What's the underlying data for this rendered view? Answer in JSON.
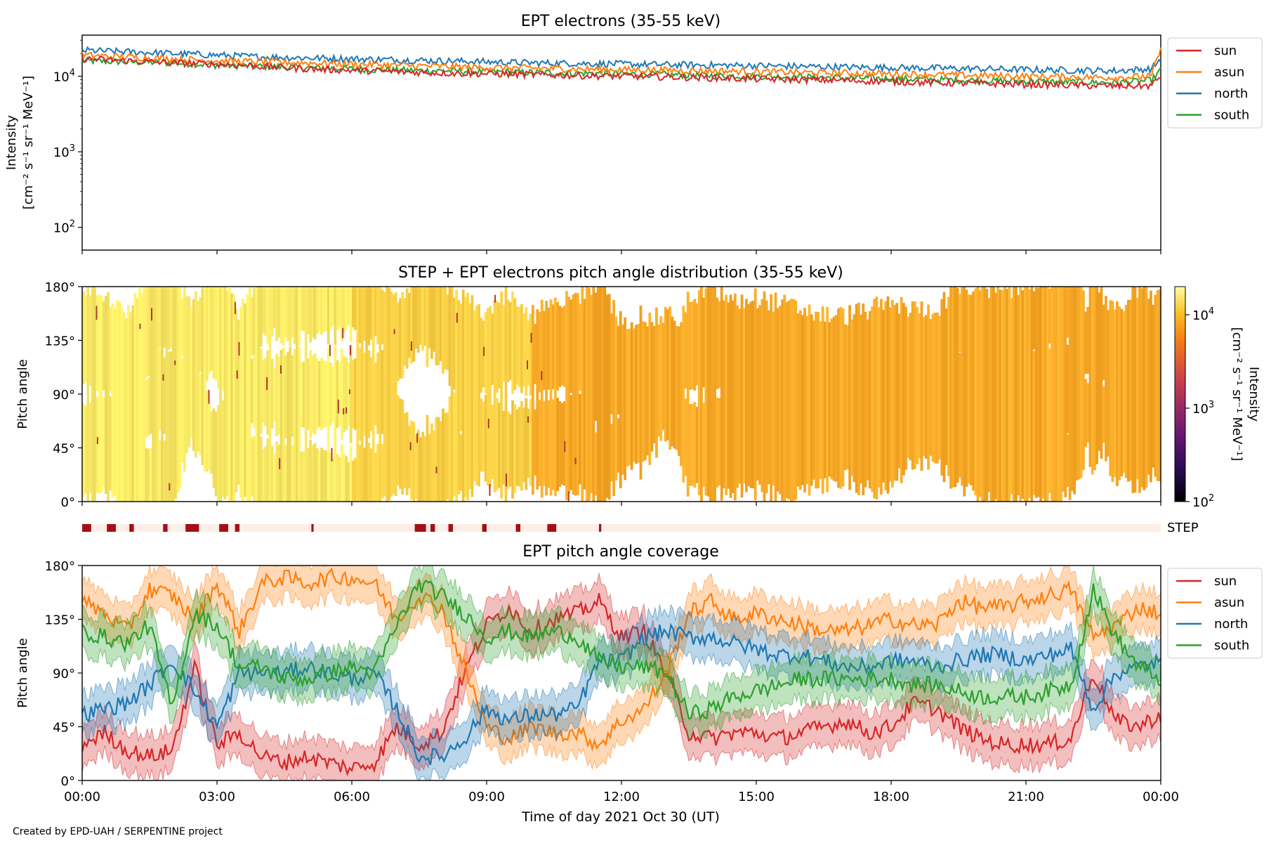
{
  "credit": "Created by EPD-UAH / SERPENTINE project",
  "colors": {
    "sun": "#d62728",
    "asun": "#ff7f0e",
    "north": "#1f77b4",
    "south": "#2ca02c"
  },
  "chart_data": [
    {
      "type": "line",
      "title": "EPT electrons (35-55 keV)",
      "ylabel_line1": "Intensity",
      "ylabel_line2": "[cm⁻² s⁻¹ sr⁻¹ MeV⁻¹]",
      "yscale": "log",
      "ylim": [
        50,
        35000
      ],
      "yticks": [
        {
          "value": 100,
          "base": "10",
          "exp": "2"
        },
        {
          "value": 1000,
          "base": "10",
          "exp": "3"
        },
        {
          "value": 10000,
          "base": "10",
          "exp": "4"
        }
      ],
      "xlim_hours": [
        0,
        24
      ],
      "legend_position": "outside-right",
      "legend": [
        "sun",
        "asun",
        "north",
        "south"
      ],
      "x": [
        0,
        1,
        2,
        3,
        4,
        5,
        6,
        7,
        8,
        9,
        10,
        11,
        12,
        13,
        14,
        15,
        16,
        17,
        18,
        19,
        20,
        21,
        22,
        23,
        23.8,
        24
      ],
      "series": [
        {
          "name": "sun",
          "values": [
            17000,
            16000,
            15000,
            14500,
            13500,
            12500,
            12000,
            11500,
            11000,
            10800,
            10500,
            10200,
            10000,
            9800,
            9500,
            9200,
            9000,
            8800,
            8500,
            8200,
            8000,
            7800,
            7600,
            7400,
            7500,
            10000
          ]
        },
        {
          "name": "asun",
          "values": [
            19000,
            18000,
            17000,
            16000,
            15500,
            15000,
            14500,
            14000,
            13500,
            13000,
            12800,
            12500,
            12200,
            12000,
            11800,
            11500,
            11200,
            11000,
            10800,
            10500,
            10200,
            10000,
            9800,
            9600,
            10000,
            22000
          ]
        },
        {
          "name": "north",
          "values": [
            22000,
            21000,
            20000,
            19000,
            18000,
            17500,
            17000,
            16500,
            16000,
            15500,
            15000,
            14800,
            14500,
            14200,
            14000,
            13800,
            13500,
            13200,
            13000,
            12800,
            12500,
            12200,
            12000,
            11800,
            12500,
            17000
          ]
        },
        {
          "name": "south",
          "values": [
            16000,
            15500,
            15000,
            14000,
            13500,
            13000,
            12500,
            12000,
            11800,
            11500,
            11200,
            11000,
            10800,
            10500,
            10200,
            10000,
            9800,
            9500,
            9300,
            9000,
            8800,
            8600,
            8400,
            8200,
            8800,
            12000
          ]
        }
      ]
    },
    {
      "type": "heatmap",
      "title": "STEP + EPT electrons pitch angle distribution (35-55 keV)",
      "ylabel": "Pitch angle",
      "ylim": [
        0,
        180
      ],
      "yticks": [
        "0°",
        "45°",
        "90°",
        "135°",
        "180°"
      ],
      "colorbar_label_line1": "Intensity",
      "colorbar_label_line2": "[cm⁻² s⁻¹ sr⁻¹ MeV⁻¹]",
      "colorbar_scale": "log",
      "colorbar_range": [
        100,
        20000
      ],
      "colorbar_ticks": [
        {
          "value": 100,
          "base": "10",
          "exp": "2"
        },
        {
          "value": 1000,
          "base": "10",
          "exp": "3"
        },
        {
          "value": 10000,
          "base": "10",
          "exp": "4"
        }
      ],
      "colormap": "inferno",
      "gaps_note_hours_ranges": [
        [
          0,
          5
        ],
        [
          5,
          9
        ],
        [
          9,
          12
        ],
        [
          12,
          24
        ]
      ]
    },
    {
      "type": "bar",
      "label": "STEP",
      "step_blocks_hours": [
        [
          0.0,
          0.2
        ],
        [
          0.55,
          0.75
        ],
        [
          1.05,
          1.15
        ],
        [
          1.8,
          1.9
        ],
        [
          2.3,
          2.6
        ],
        [
          3.05,
          3.25
        ],
        [
          3.4,
          3.5
        ],
        [
          5.1,
          5.15
        ],
        [
          7.4,
          7.65
        ],
        [
          7.75,
          7.85
        ],
        [
          8.15,
          8.25
        ],
        [
          8.9,
          9.0
        ],
        [
          9.65,
          9.75
        ],
        [
          10.35,
          10.55
        ],
        [
          11.5,
          11.55
        ]
      ]
    },
    {
      "type": "line",
      "title": "EPT pitch angle coverage",
      "ylabel": "Pitch angle",
      "xlabel": "Time of day 2021 Oct 30 (UT)",
      "ylim": [
        0,
        180
      ],
      "yticks": [
        "0°",
        "45°",
        "90°",
        "135°",
        "180°"
      ],
      "xticks": [
        "00:00",
        "03:00",
        "06:00",
        "09:00",
        "12:00",
        "15:00",
        "18:00",
        "21:00",
        "00:00"
      ],
      "legend_position": "outside-right",
      "legend": [
        "sun",
        "asun",
        "north",
        "south"
      ],
      "x": [
        0,
        0.5,
        1,
        1.5,
        2,
        2.5,
        3,
        3.5,
        4,
        4.5,
        5,
        5.5,
        6,
        6.5,
        7,
        7.5,
        8,
        8.5,
        9,
        9.5,
        10,
        10.5,
        11,
        11.5,
        12,
        12.5,
        13,
        13.5,
        14,
        14.5,
        15,
        15.5,
        16,
        16.5,
        17,
        17.5,
        18,
        18.5,
        19,
        19.5,
        20,
        20.5,
        21,
        21.5,
        22,
        22.5,
        23,
        23.5,
        24
      ],
      "series": [
        {
          "name": "sun",
          "values": [
            30,
            40,
            25,
            20,
            25,
            95,
            30,
            40,
            20,
            15,
            20,
            15,
            10,
            15,
            45,
            30,
            40,
            90,
            130,
            145,
            125,
            135,
            140,
            150,
            120,
            125,
            90,
            40,
            35,
            40,
            40,
            35,
            40,
            45,
            50,
            40,
            45,
            65,
            60,
            45,
            35,
            30,
            30,
            30,
            35,
            90,
            50,
            45,
            55
          ]
        },
        {
          "name": "asun",
          "values": [
            150,
            140,
            125,
            160,
            155,
            135,
            165,
            125,
            165,
            170,
            165,
            170,
            170,
            165,
            135,
            155,
            145,
            95,
            45,
            35,
            45,
            40,
            40,
            30,
            50,
            60,
            90,
            140,
            150,
            135,
            140,
            135,
            130,
            125,
            125,
            130,
            135,
            130,
            130,
            150,
            145,
            145,
            150,
            155,
            160,
            120,
            130,
            145,
            140
          ]
        },
        {
          "name": "north",
          "values": [
            55,
            60,
            65,
            80,
            100,
            75,
            45,
            90,
            90,
            90,
            95,
            90,
            85,
            90,
            60,
            20,
            20,
            35,
            60,
            50,
            55,
            55,
            60,
            100,
            100,
            120,
            125,
            120,
            120,
            115,
            110,
            105,
            105,
            100,
            95,
            95,
            100,
            100,
            95,
            100,
            105,
            105,
            100,
            105,
            110,
            60,
            90,
            95,
            100
          ]
        },
        {
          "name": "south",
          "values": [
            125,
            120,
            115,
            130,
            60,
            140,
            130,
            95,
            95,
            85,
            85,
            90,
            95,
            90,
            130,
            165,
            155,
            140,
            120,
            125,
            120,
            125,
            120,
            100,
            95,
            95,
            90,
            55,
            60,
            70,
            75,
            80,
            85,
            85,
            85,
            85,
            85,
            80,
            80,
            75,
            70,
            70,
            70,
            75,
            80,
            160,
            120,
            95,
            85
          ]
        }
      ]
    }
  ]
}
